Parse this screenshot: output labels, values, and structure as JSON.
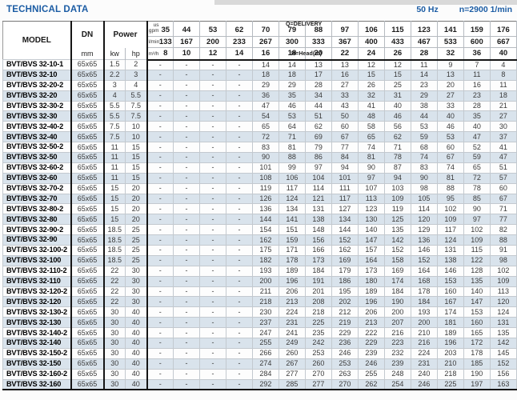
{
  "page": {
    "title": "TECHNICAL DATA",
    "frequency": "50 Hz",
    "speed": "n=2900 1/min"
  },
  "colors": {
    "accent_blue": "#1b5ca4",
    "row_alt": "#d9e3ec",
    "thick_border": "#151515"
  },
  "table": {
    "col_headers": {
      "model": "MODEL",
      "dn": "DN",
      "dn_unit": "mm",
      "power": "Power",
      "kw": "kw",
      "hp": "hp"
    },
    "delivery": {
      "label": "Q=DELIVERY",
      "head_label": "H=Head(m)",
      "units": {
        "us_gpm": "us\ngpm",
        "l_min": "l/min",
        "m3_h": "m³/h"
      },
      "us_gpm": [
        35,
        44,
        53,
        62,
        70,
        79,
        88,
        97,
        106,
        115,
        123,
        141,
        159,
        176
      ],
      "l_min": [
        133,
        167,
        200,
        233,
        267,
        300,
        333,
        367,
        400,
        433,
        467,
        533,
        600,
        667
      ],
      "m3_h": [
        8,
        10,
        12,
        14,
        16,
        18,
        20,
        22,
        24,
        26,
        28,
        32,
        36,
        40
      ]
    },
    "rows": [
      {
        "model": "BVT/BVS 32-10-1",
        "dn": "65x65",
        "kw": "1.5",
        "hp": "2",
        "heads": [
          "-",
          "-",
          "-",
          "-",
          "14",
          "14",
          "13",
          "13",
          "12",
          "12",
          "11",
          "9",
          "7",
          "4"
        ]
      },
      {
        "model": "BVT/BVS 32-10",
        "dn": "65x65",
        "kw": "2.2",
        "hp": "3",
        "heads": [
          "-",
          "-",
          "-",
          "-",
          "18",
          "18",
          "17",
          "16",
          "15",
          "15",
          "14",
          "13",
          "11",
          "8"
        ]
      },
      {
        "model": "BVT/BVS 32-20-2",
        "dn": "65x65",
        "kw": "3",
        "hp": "4",
        "heads": [
          "-",
          "-",
          "-",
          "-",
          "29",
          "29",
          "28",
          "27",
          "26",
          "25",
          "23",
          "20",
          "16",
          "11"
        ]
      },
      {
        "model": "BVT/BVS 32-20",
        "dn": "65x65",
        "kw": "4",
        "hp": "5.5",
        "heads": [
          "-",
          "-",
          "-",
          "-",
          "36",
          "35",
          "34",
          "33",
          "32",
          "31",
          "29",
          "27",
          "23",
          "18"
        ]
      },
      {
        "model": "BVT/BVS 32-30-2",
        "dn": "65x65",
        "kw": "5.5",
        "hp": "7.5",
        "heads": [
          "-",
          "-",
          "-",
          "-",
          "47",
          "46",
          "44",
          "43",
          "41",
          "40",
          "38",
          "33",
          "28",
          "21"
        ]
      },
      {
        "model": "BVT/BVS 32-30",
        "dn": "65x65",
        "kw": "5.5",
        "hp": "7.5",
        "heads": [
          "-",
          "-",
          "-",
          "-",
          "54",
          "53",
          "51",
          "50",
          "48",
          "46",
          "44",
          "40",
          "35",
          "27"
        ]
      },
      {
        "model": "BVT/BVS 32-40-2",
        "dn": "65x65",
        "kw": "7.5",
        "hp": "10",
        "heads": [
          "-",
          "-",
          "-",
          "-",
          "65",
          "64",
          "62",
          "60",
          "58",
          "56",
          "53",
          "46",
          "40",
          "30"
        ]
      },
      {
        "model": "BVT/BVS 32-40",
        "dn": "65x65",
        "kw": "7.5",
        "hp": "10",
        "heads": [
          "-",
          "-",
          "-",
          "-",
          "72",
          "71",
          "69",
          "67",
          "65",
          "62",
          "59",
          "53",
          "47",
          "37"
        ]
      },
      {
        "model": "BVT/BVS 32-50-2",
        "dn": "65x65",
        "kw": "11",
        "hp": "15",
        "heads": [
          "-",
          "-",
          "-",
          "-",
          "83",
          "81",
          "79",
          "77",
          "74",
          "71",
          "68",
          "60",
          "52",
          "41"
        ]
      },
      {
        "model": "BVT/BVS 32-50",
        "dn": "65x65",
        "kw": "11",
        "hp": "15",
        "heads": [
          "-",
          "-",
          "-",
          "-",
          "90",
          "88",
          "86",
          "84",
          "81",
          "78",
          "74",
          "67",
          "59",
          "47"
        ]
      },
      {
        "model": "BVT/BVS 32-60-2",
        "dn": "65x65",
        "kw": "11",
        "hp": "15",
        "heads": [
          "-",
          "-",
          "-",
          "-",
          "101",
          "99",
          "97",
          "94",
          "90",
          "87",
          "83",
          "74",
          "65",
          "51"
        ]
      },
      {
        "model": "BVT/BVS 32-60",
        "dn": "65x65",
        "kw": "11",
        "hp": "15",
        "heads": [
          "-",
          "-",
          "-",
          "-",
          "108",
          "106",
          "104",
          "101",
          "97",
          "94",
          "90",
          "81",
          "72",
          "57"
        ]
      },
      {
        "model": "BVT/BVS 32-70-2",
        "dn": "65x65",
        "kw": "15",
        "hp": "20",
        "heads": [
          "-",
          "-",
          "-",
          "-",
          "119",
          "117",
          "114",
          "111",
          "107",
          "103",
          "98",
          "88",
          "78",
          "60"
        ]
      },
      {
        "model": "BVT/BVS 32-70",
        "dn": "65x65",
        "kw": "15",
        "hp": "20",
        "heads": [
          "-",
          "-",
          "-",
          "-",
          "126",
          "124",
          "121",
          "117",
          "113",
          "109",
          "105",
          "95",
          "85",
          "67"
        ]
      },
      {
        "model": "BVT/BVS 32-80-2",
        "dn": "65x65",
        "kw": "15",
        "hp": "20",
        "heads": [
          "-",
          "-",
          "-",
          "-",
          "136",
          "134",
          "131",
          "127",
          "123",
          "119",
          "114",
          "102",
          "90",
          "71"
        ]
      },
      {
        "model": "BVT/BVS 32-80",
        "dn": "65x65",
        "kw": "15",
        "hp": "20",
        "heads": [
          "-",
          "-",
          "-",
          "-",
          "144",
          "141",
          "138",
          "134",
          "130",
          "125",
          "120",
          "109",
          "97",
          "77"
        ]
      },
      {
        "model": "BVT/BVS 32-90-2",
        "dn": "65x65",
        "kw": "18.5",
        "hp": "25",
        "heads": [
          "-",
          "-",
          "-",
          "-",
          "154",
          "151",
          "148",
          "144",
          "140",
          "135",
          "129",
          "117",
          "102",
          "82"
        ]
      },
      {
        "model": "BVT/BVS 32-90",
        "dn": "65x65",
        "kw": "18.5",
        "hp": "25",
        "heads": [
          "-",
          "-",
          "-",
          "-",
          "162",
          "159",
          "156",
          "152",
          "147",
          "142",
          "136",
          "124",
          "109",
          "88"
        ]
      },
      {
        "model": "BVT/BVS 32-100-2",
        "dn": "65x65",
        "kw": "18.5",
        "hp": "25",
        "heads": [
          "-",
          "-",
          "-",
          "-",
          "175",
          "171",
          "166",
          "162",
          "157",
          "152",
          "146",
          "131",
          "115",
          "91"
        ]
      },
      {
        "model": "BVT/BVS 32-100",
        "dn": "65x65",
        "kw": "18.5",
        "hp": "25",
        "heads": [
          "-",
          "-",
          "-",
          "-",
          "182",
          "178",
          "173",
          "169",
          "164",
          "158",
          "152",
          "138",
          "122",
          "98"
        ]
      },
      {
        "model": "BVT/BVS 32-110-2",
        "dn": "65x65",
        "kw": "22",
        "hp": "30",
        "heads": [
          "-",
          "-",
          "-",
          "-",
          "193",
          "189",
          "184",
          "179",
          "173",
          "169",
          "164",
          "146",
          "128",
          "102"
        ]
      },
      {
        "model": "BVT/BVS 32-110",
        "dn": "65x65",
        "kw": "22",
        "hp": "30",
        "heads": [
          "-",
          "-",
          "-",
          "-",
          "200",
          "196",
          "191",
          "186",
          "180",
          "174",
          "168",
          "153",
          "135",
          "109"
        ]
      },
      {
        "model": "BVT/BVS 32-120-2",
        "dn": "65x65",
        "kw": "22",
        "hp": "30",
        "heads": [
          "-",
          "-",
          "-",
          "-",
          "211",
          "206",
          "201",
          "195",
          "189",
          "184",
          "178",
          "160",
          "140",
          "113"
        ]
      },
      {
        "model": "BVT/BVS 32-120",
        "dn": "65x65",
        "kw": "22",
        "hp": "30",
        "heads": [
          "-",
          "-",
          "-",
          "-",
          "218",
          "213",
          "208",
          "202",
          "196",
          "190",
          "184",
          "167",
          "147",
          "120"
        ]
      },
      {
        "model": "BVT/BVS 32-130-2",
        "dn": "65x65",
        "kw": "30",
        "hp": "40",
        "heads": [
          "-",
          "-",
          "-",
          "-",
          "230",
          "224",
          "218",
          "212",
          "206",
          "200",
          "193",
          "174",
          "153",
          "124"
        ]
      },
      {
        "model": "BVT/BVS 32-130",
        "dn": "65x65",
        "kw": "30",
        "hp": "40",
        "heads": [
          "-",
          "-",
          "-",
          "-",
          "237",
          "231",
          "225",
          "219",
          "213",
          "207",
          "200",
          "181",
          "160",
          "131"
        ]
      },
      {
        "model": "BVT/BVS 32-140-2",
        "dn": "65x65",
        "kw": "30",
        "hp": "40",
        "heads": [
          "-",
          "-",
          "-",
          "-",
          "247",
          "241",
          "235",
          "229",
          "222",
          "216",
          "210",
          "189",
          "165",
          "135"
        ]
      },
      {
        "model": "BVT/BVS 32-140",
        "dn": "65x65",
        "kw": "30",
        "hp": "40",
        "heads": [
          "-",
          "-",
          "-",
          "-",
          "255",
          "249",
          "242",
          "236",
          "229",
          "223",
          "216",
          "196",
          "172",
          "142"
        ]
      },
      {
        "model": "BVT/BVS 32-150-2",
        "dn": "65x65",
        "kw": "30",
        "hp": "40",
        "heads": [
          "-",
          "-",
          "-",
          "-",
          "266",
          "260",
          "253",
          "246",
          "239",
          "232",
          "224",
          "203",
          "178",
          "145"
        ]
      },
      {
        "model": "BVT/BVS 32-150",
        "dn": "65x65",
        "kw": "30",
        "hp": "40",
        "heads": [
          "-",
          "-",
          "-",
          "-",
          "274",
          "267",
          "260",
          "253",
          "246",
          "239",
          "231",
          "210",
          "185",
          "152"
        ]
      },
      {
        "model": "BVT/BVS 32-160-2",
        "dn": "65x65",
        "kw": "30",
        "hp": "40",
        "heads": [
          "-",
          "-",
          "-",
          "-",
          "284",
          "277",
          "270",
          "263",
          "255",
          "248",
          "240",
          "218",
          "190",
          "156"
        ]
      },
      {
        "model": "BVT/BVS 32-160",
        "dn": "65x65",
        "kw": "30",
        "hp": "40",
        "heads": [
          "-",
          "-",
          "-",
          "-",
          "292",
          "285",
          "277",
          "270",
          "262",
          "254",
          "246",
          "225",
          "197",
          "163"
        ]
      }
    ]
  }
}
